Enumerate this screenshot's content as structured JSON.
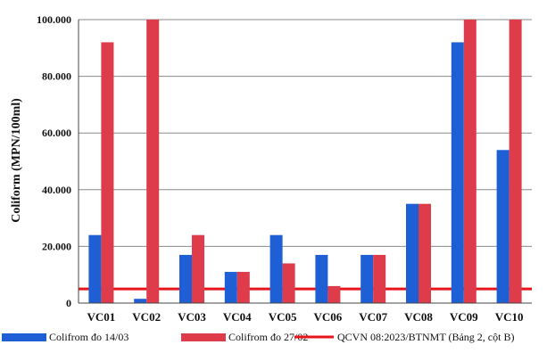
{
  "chart_data": {
    "type": "bar",
    "ylabel": "Coliform (MPN/100ml)",
    "ylim": [
      0,
      100000
    ],
    "yticks": [
      "0",
      "20.000",
      "40.000",
      "60.000",
      "80.000",
      "100.000"
    ],
    "ytick_values": [
      0,
      20000,
      40000,
      60000,
      80000,
      100000
    ],
    "categories": [
      "VC01",
      "VC02",
      "VC03",
      "VC04",
      "VC05",
      "VC06",
      "VC07",
      "VC08",
      "VC09",
      "VC10"
    ],
    "series": [
      {
        "name": "Colifrom đo 14/03",
        "color": "#1f5fd6",
        "values": [
          24000,
          1500,
          17000,
          11000,
          24000,
          17000,
          17000,
          35000,
          92000,
          54000
        ]
      },
      {
        "name": "Colifrom đo 27/02",
        "color": "#de3b4b",
        "values": [
          92000,
          100000,
          24000,
          11000,
          14000,
          6000,
          17000,
          35000,
          100000,
          100000
        ]
      }
    ],
    "reference_line": {
      "name": "QCVN 08:2023/BTNMT (Bảng 2, cột B)",
      "value": 5000,
      "color": "#e8141c"
    },
    "grid": "horizontal",
    "legend_position": "bottom"
  }
}
